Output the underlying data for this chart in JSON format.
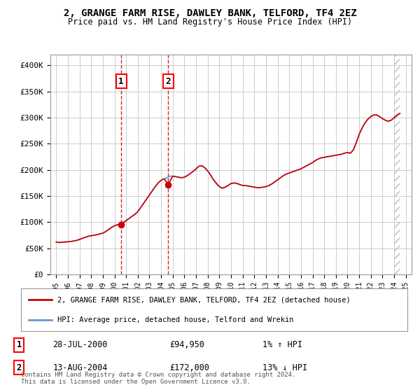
{
  "title": "2, GRANGE FARM RISE, DAWLEY BANK, TELFORD, TF4 2EZ",
  "subtitle": "Price paid vs. HM Land Registry's House Price Index (HPI)",
  "legend_line1": "2, GRANGE FARM RISE, DAWLEY BANK, TELFORD, TF4 2EZ (detached house)",
  "legend_line2": "HPI: Average price, detached house, Telford and Wrekin",
  "footnote": "Contains HM Land Registry data © Crown copyright and database right 2024.\nThis data is licensed under the Open Government Licence v3.0.",
  "sale1_date": 2000.57,
  "sale1_price": 94950,
  "sale1_label": "28-JUL-2000",
  "sale1_amount": "£94,950",
  "sale1_hpi": "1% ↑ HPI",
  "sale2_date": 2004.62,
  "sale2_price": 172000,
  "sale2_label": "13-AUG-2004",
  "sale2_amount": "£172,000",
  "sale2_hpi": "13% ↓ HPI",
  "ylim": [
    0,
    420000
  ],
  "xlim_start": 1994.5,
  "xlim_end": 2025.5,
  "yticks": [
    0,
    50000,
    100000,
    150000,
    200000,
    250000,
    300000,
    350000,
    400000
  ],
  "ytick_labels": [
    "£0",
    "£50K",
    "£100K",
    "£150K",
    "£200K",
    "£250K",
    "£300K",
    "£350K",
    "£400K"
  ],
  "red_color": "#cc0000",
  "blue_color": "#6699cc",
  "hpi_data_x": [
    1995.0,
    1995.25,
    1995.5,
    1995.75,
    1996.0,
    1996.25,
    1996.5,
    1996.75,
    1997.0,
    1997.25,
    1997.5,
    1997.75,
    1998.0,
    1998.25,
    1998.5,
    1998.75,
    1999.0,
    1999.25,
    1999.5,
    1999.75,
    2000.0,
    2000.25,
    2000.5,
    2000.75,
    2001.0,
    2001.25,
    2001.5,
    2001.75,
    2002.0,
    2002.25,
    2002.5,
    2002.75,
    2003.0,
    2003.25,
    2003.5,
    2003.75,
    2004.0,
    2004.25,
    2004.5,
    2004.75,
    2005.0,
    2005.25,
    2005.5,
    2005.75,
    2006.0,
    2006.25,
    2006.5,
    2006.75,
    2007.0,
    2007.25,
    2007.5,
    2007.75,
    2008.0,
    2008.25,
    2008.5,
    2008.75,
    2009.0,
    2009.25,
    2009.5,
    2009.75,
    2010.0,
    2010.25,
    2010.5,
    2010.75,
    2011.0,
    2011.25,
    2011.5,
    2011.75,
    2012.0,
    2012.25,
    2012.5,
    2012.75,
    2013.0,
    2013.25,
    2013.5,
    2013.75,
    2014.0,
    2014.25,
    2014.5,
    2014.75,
    2015.0,
    2015.25,
    2015.5,
    2015.75,
    2016.0,
    2016.25,
    2016.5,
    2016.75,
    2017.0,
    2017.25,
    2017.5,
    2017.75,
    2018.0,
    2018.25,
    2018.5,
    2018.75,
    2019.0,
    2019.25,
    2019.5,
    2019.75,
    2020.0,
    2020.25,
    2020.5,
    2020.75,
    2021.0,
    2021.25,
    2021.5,
    2021.75,
    2022.0,
    2022.25,
    2022.5,
    2022.75,
    2023.0,
    2023.25,
    2023.5,
    2023.75,
    2024.0,
    2024.25,
    2024.5
  ],
  "hpi_data_y": [
    62000,
    61000,
    61500,
    62000,
    62500,
    63000,
    64000,
    65000,
    67000,
    69000,
    71000,
    73000,
    74000,
    75000,
    76000,
    77500,
    79000,
    82000,
    86000,
    90000,
    93000,
    95000,
    97000,
    100000,
    103000,
    107000,
    111000,
    115000,
    120000,
    128000,
    136000,
    144000,
    152000,
    160000,
    168000,
    175000,
    180000,
    183000,
    185000,
    188000,
    188000,
    187000,
    186000,
    185000,
    186000,
    189000,
    193000,
    197000,
    202000,
    207000,
    208000,
    204000,
    198000,
    190000,
    181000,
    174000,
    168000,
    165000,
    167000,
    170000,
    174000,
    175000,
    174000,
    172000,
    170000,
    170000,
    169000,
    168000,
    167000,
    166000,
    166000,
    167000,
    168000,
    170000,
    173000,
    177000,
    181000,
    185000,
    189000,
    192000,
    194000,
    196000,
    198000,
    200000,
    202000,
    205000,
    208000,
    211000,
    214000,
    218000,
    221000,
    223000,
    224000,
    225000,
    226000,
    227000,
    228000,
    229000,
    230000,
    232000,
    233000,
    232000,
    238000,
    252000,
    268000,
    280000,
    290000,
    297000,
    302000,
    305000,
    305000,
    302000,
    298000,
    295000,
    293000,
    295000,
    300000,
    305000,
    308000
  ],
  "price_data_x": [
    1995.0,
    1995.25,
    1995.5,
    1995.75,
    1996.0,
    1996.25,
    1996.5,
    1996.75,
    1997.0,
    1997.25,
    1997.5,
    1997.75,
    1998.0,
    1998.25,
    1998.5,
    1998.75,
    1999.0,
    1999.25,
    1999.5,
    1999.75,
    2000.0,
    2000.25,
    2000.57,
    2001.0,
    2001.25,
    2001.5,
    2001.75,
    2002.0,
    2002.25,
    2002.5,
    2002.75,
    2003.0,
    2003.25,
    2003.5,
    2003.75,
    2004.0,
    2004.25,
    2004.62,
    2005.0,
    2005.25,
    2005.5,
    2005.75,
    2006.0,
    2006.25,
    2006.5,
    2006.75,
    2007.0,
    2007.25,
    2007.5,
    2007.75,
    2008.0,
    2008.25,
    2008.5,
    2008.75,
    2009.0,
    2009.25,
    2009.5,
    2009.75,
    2010.0,
    2010.25,
    2010.5,
    2010.75,
    2011.0,
    2011.25,
    2011.5,
    2011.75,
    2012.0,
    2012.25,
    2012.5,
    2012.75,
    2013.0,
    2013.25,
    2013.5,
    2013.75,
    2014.0,
    2014.25,
    2014.5,
    2014.75,
    2015.0,
    2015.25,
    2015.5,
    2015.75,
    2016.0,
    2016.25,
    2016.5,
    2016.75,
    2017.0,
    2017.25,
    2017.5,
    2017.75,
    2018.0,
    2018.25,
    2018.5,
    2018.75,
    2019.0,
    2019.25,
    2019.5,
    2019.75,
    2020.0,
    2020.25,
    2020.5,
    2020.75,
    2021.0,
    2021.25,
    2021.5,
    2021.75,
    2022.0,
    2022.25,
    2022.5,
    2022.75,
    2023.0,
    2023.25,
    2023.5,
    2023.75,
    2024.0,
    2024.25,
    2024.5
  ],
  "price_data_y": [
    62000,
    61000,
    61500,
    62000,
    62500,
    63000,
    64000,
    65000,
    67000,
    69000,
    71000,
    73000,
    74000,
    75000,
    76000,
    77500,
    79000,
    82000,
    86000,
    90000,
    93000,
    95000,
    94950,
    103000,
    107000,
    111000,
    115000,
    120000,
    128000,
    136000,
    144000,
    152000,
    160000,
    168000,
    175000,
    180000,
    183000,
    172000,
    188000,
    187000,
    186000,
    185000,
    186000,
    189000,
    193000,
    197000,
    202000,
    207000,
    208000,
    204000,
    198000,
    190000,
    181000,
    174000,
    168000,
    165000,
    167000,
    170000,
    174000,
    175000,
    174000,
    172000,
    170000,
    170000,
    169000,
    168000,
    167000,
    166000,
    166000,
    167000,
    168000,
    170000,
    173000,
    177000,
    181000,
    185000,
    189000,
    192000,
    194000,
    196000,
    198000,
    200000,
    202000,
    205000,
    208000,
    211000,
    214000,
    218000,
    221000,
    223000,
    224000,
    225000,
    226000,
    227000,
    228000,
    229000,
    230000,
    232000,
    233000,
    232000,
    238000,
    252000,
    268000,
    280000,
    290000,
    297000,
    302000,
    305000,
    305000,
    302000,
    298000,
    295000,
    293000,
    295000,
    300000,
    305000,
    308000
  ],
  "hatch_start": 2024.0,
  "background_color": "#ffffff",
  "grid_color": "#cccccc",
  "shade_color": "#cce0ff"
}
